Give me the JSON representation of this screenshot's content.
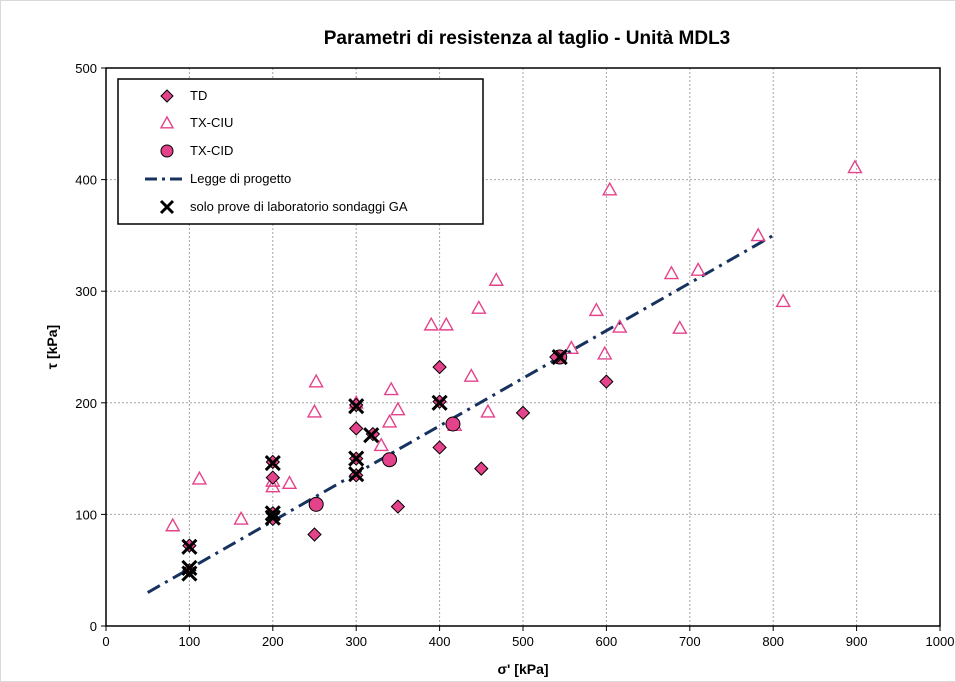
{
  "chart_data": {
    "type": "scatter",
    "title": "Parametri di resistenza al taglio - Unità MDL3",
    "xlabel": "σ' [kPa]",
    "ylabel": "τ [kPa]",
    "xlim": [
      0,
      1000
    ],
    "ylim": [
      0,
      500
    ],
    "x_ticks": [
      "0",
      "100",
      "200",
      "300",
      "400",
      "500",
      "600",
      "700",
      "800",
      "900",
      "1000"
    ],
    "y_ticks": [
      "0",
      "100",
      "200",
      "300",
      "400",
      "500"
    ],
    "grid": true,
    "legend_position": "top-left",
    "colors": {
      "marker_fill": "#e4428a",
      "marker_stroke": "#000000",
      "triangle_stroke": "#e4428a",
      "line": "#17325e",
      "cross": "#000000"
    },
    "series": [
      {
        "name": "TD",
        "marker": "diamond",
        "points": [
          [
            100,
            50
          ],
          [
            100,
            72
          ],
          [
            200,
            96
          ],
          [
            200,
            101
          ],
          [
            200,
            133
          ],
          [
            200,
            147
          ],
          [
            250,
            82
          ],
          [
            300,
            135
          ],
          [
            300,
            150
          ],
          [
            300,
            177
          ],
          [
            300,
            198
          ],
          [
            320,
            172
          ],
          [
            350,
            107
          ],
          [
            400,
            160
          ],
          [
            400,
            201
          ],
          [
            400,
            232
          ],
          [
            450,
            141
          ],
          [
            500,
            191
          ],
          [
            540,
            241
          ],
          [
            600,
            219
          ]
        ]
      },
      {
        "name": "TX-CIU",
        "marker": "triangle",
        "points": [
          [
            80,
            90
          ],
          [
            112,
            132
          ],
          [
            162,
            96
          ],
          [
            200,
            125
          ],
          [
            200,
            130
          ],
          [
            220,
            128
          ],
          [
            250,
            192
          ],
          [
            252,
            219
          ],
          [
            300,
            200
          ],
          [
            330,
            162
          ],
          [
            340,
            183
          ],
          [
            342,
            212
          ],
          [
            350,
            194
          ],
          [
            390,
            270
          ],
          [
            408,
            270
          ],
          [
            418,
            180
          ],
          [
            438,
            224
          ],
          [
            447,
            285
          ],
          [
            458,
            192
          ],
          [
            468,
            310
          ],
          [
            558,
            249
          ],
          [
            588,
            283
          ],
          [
            598,
            244
          ],
          [
            604,
            391
          ],
          [
            616,
            268
          ],
          [
            678,
            316
          ],
          [
            688,
            267
          ],
          [
            710,
            319
          ],
          [
            782,
            350
          ],
          [
            812,
            291
          ],
          [
            898,
            411
          ]
        ]
      },
      {
        "name": "TX-CID",
        "marker": "circle",
        "points": [
          [
            252,
            109
          ],
          [
            340,
            149
          ],
          [
            416,
            181
          ],
          [
            544,
            241
          ]
        ]
      },
      {
        "name": "Legge di progetto",
        "marker": "dash-dot-line",
        "points": [
          [
            50,
            30
          ],
          [
            800,
            350
          ]
        ]
      },
      {
        "name": "solo prove di laboratorio sondaggi GA",
        "marker": "x",
        "points": [
          [
            100,
            47
          ],
          [
            100,
            52
          ],
          [
            100,
            71
          ],
          [
            200,
            97
          ],
          [
            200,
            101
          ],
          [
            200,
            146
          ],
          [
            300,
            136
          ],
          [
            300,
            150
          ],
          [
            300,
            197
          ],
          [
            318,
            171
          ],
          [
            400,
            200
          ],
          [
            544,
            241
          ]
        ]
      }
    ]
  }
}
